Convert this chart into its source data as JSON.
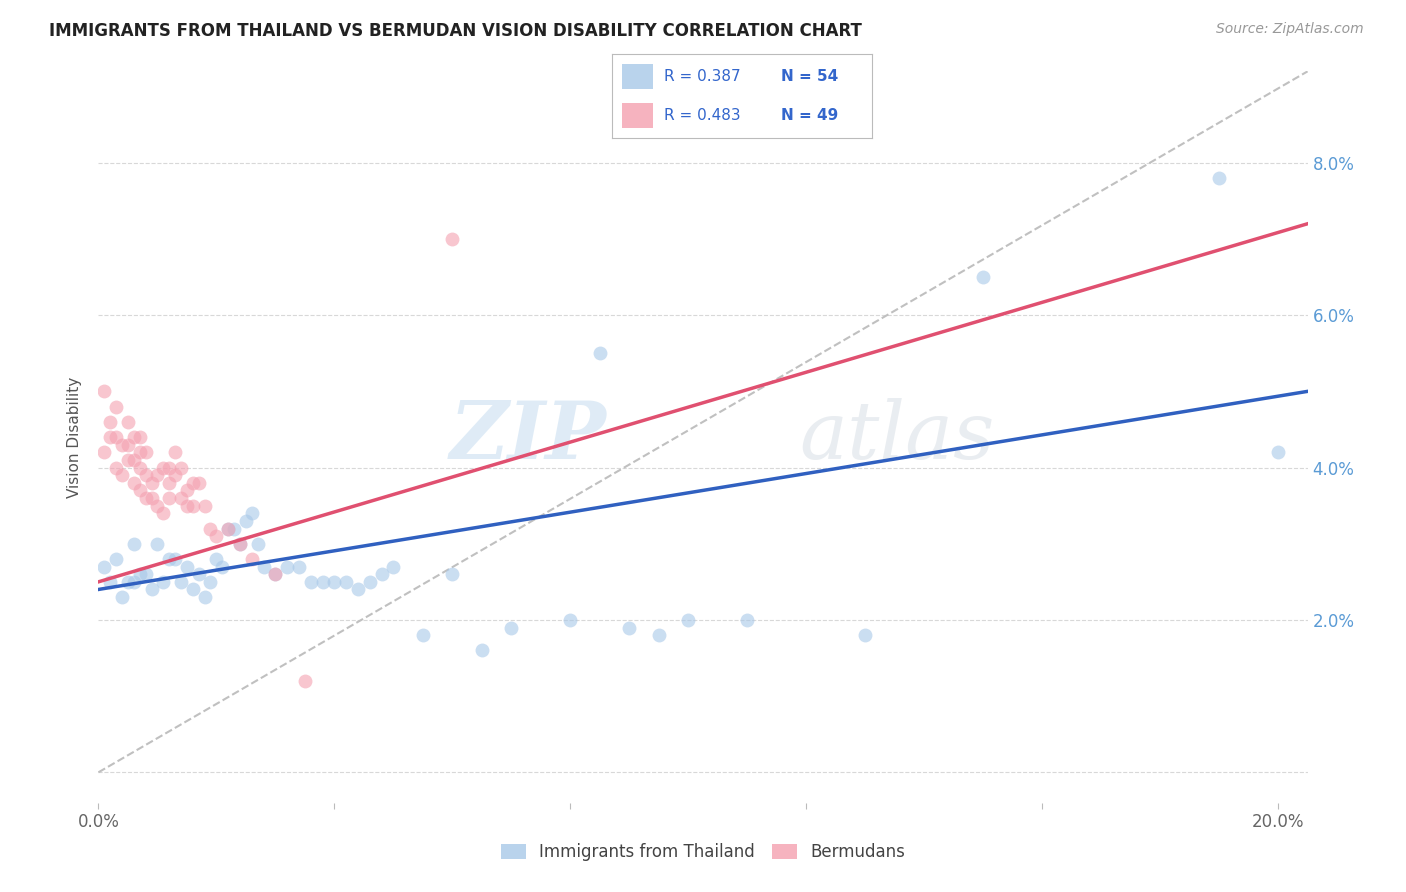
{
  "title": "IMMIGRANTS FROM THAILAND VS BERMUDAN VISION DISABILITY CORRELATION CHART",
  "source": "Source: ZipAtlas.com",
  "ylabel": "Vision Disability",
  "xlim": [
    0.0,
    0.205
  ],
  "ylim": [
    -0.004,
    0.092
  ],
  "x_tick_positions": [
    0.0,
    0.04,
    0.08,
    0.12,
    0.16,
    0.2
  ],
  "x_tick_labels": [
    "0.0%",
    "",
    "",
    "",
    "",
    "20.0%"
  ],
  "y_tick_positions": [
    0.0,
    0.02,
    0.04,
    0.06,
    0.08
  ],
  "y_tick_labels_right": [
    "",
    "2.0%",
    "4.0%",
    "6.0%",
    "8.0%"
  ],
  "blue_color": "#a8c8e8",
  "pink_color": "#f4a0b0",
  "blue_line_color": "#3060c0",
  "pink_line_color": "#e05070",
  "dash_line_color": "#c0c0c0",
  "grid_color": "#d8d8d8",
  "blue_line_x0": 0.0,
  "blue_line_y0": 0.024,
  "blue_line_x1": 0.205,
  "blue_line_y1": 0.05,
  "pink_line_x0": 0.0,
  "pink_line_y0": 0.025,
  "pink_line_x1": 0.205,
  "pink_line_y1": 0.072,
  "dash_line_x0": 0.0,
  "dash_line_y0": 0.0,
  "dash_line_x1": 0.205,
  "dash_line_y1": 0.092,
  "blue_points_x": [
    0.001,
    0.002,
    0.003,
    0.004,
    0.005,
    0.006,
    0.006,
    0.007,
    0.008,
    0.009,
    0.01,
    0.011,
    0.012,
    0.013,
    0.014,
    0.015,
    0.016,
    0.017,
    0.018,
    0.019,
    0.02,
    0.021,
    0.022,
    0.023,
    0.024,
    0.025,
    0.026,
    0.027,
    0.028,
    0.03,
    0.032,
    0.034,
    0.036,
    0.038,
    0.04,
    0.042,
    0.044,
    0.046,
    0.048,
    0.05,
    0.055,
    0.06,
    0.065,
    0.07,
    0.08,
    0.085,
    0.09,
    0.095,
    0.1,
    0.11,
    0.13,
    0.15,
    0.19,
    0.2
  ],
  "blue_points_y": [
    0.027,
    0.025,
    0.028,
    0.023,
    0.025,
    0.03,
    0.025,
    0.026,
    0.026,
    0.024,
    0.03,
    0.025,
    0.028,
    0.028,
    0.025,
    0.027,
    0.024,
    0.026,
    0.023,
    0.025,
    0.028,
    0.027,
    0.032,
    0.032,
    0.03,
    0.033,
    0.034,
    0.03,
    0.027,
    0.026,
    0.027,
    0.027,
    0.025,
    0.025,
    0.025,
    0.025,
    0.024,
    0.025,
    0.026,
    0.027,
    0.018,
    0.026,
    0.016,
    0.019,
    0.02,
    0.055,
    0.019,
    0.018,
    0.02,
    0.02,
    0.018,
    0.065,
    0.078,
    0.042
  ],
  "pink_points_x": [
    0.001,
    0.001,
    0.002,
    0.002,
    0.003,
    0.003,
    0.003,
    0.004,
    0.004,
    0.005,
    0.005,
    0.005,
    0.006,
    0.006,
    0.006,
    0.007,
    0.007,
    0.007,
    0.007,
    0.008,
    0.008,
    0.008,
    0.009,
    0.009,
    0.01,
    0.01,
    0.011,
    0.011,
    0.012,
    0.012,
    0.012,
    0.013,
    0.013,
    0.014,
    0.014,
    0.015,
    0.015,
    0.016,
    0.016,
    0.017,
    0.018,
    0.019,
    0.02,
    0.022,
    0.024,
    0.026,
    0.03,
    0.035,
    0.06
  ],
  "pink_points_y": [
    0.05,
    0.042,
    0.046,
    0.044,
    0.044,
    0.04,
    0.048,
    0.043,
    0.039,
    0.041,
    0.046,
    0.043,
    0.044,
    0.041,
    0.038,
    0.044,
    0.042,
    0.04,
    0.037,
    0.042,
    0.039,
    0.036,
    0.038,
    0.036,
    0.039,
    0.035,
    0.04,
    0.034,
    0.04,
    0.038,
    0.036,
    0.042,
    0.039,
    0.04,
    0.036,
    0.037,
    0.035,
    0.038,
    0.035,
    0.038,
    0.035,
    0.032,
    0.031,
    0.032,
    0.03,
    0.028,
    0.026,
    0.012,
    0.07
  ]
}
